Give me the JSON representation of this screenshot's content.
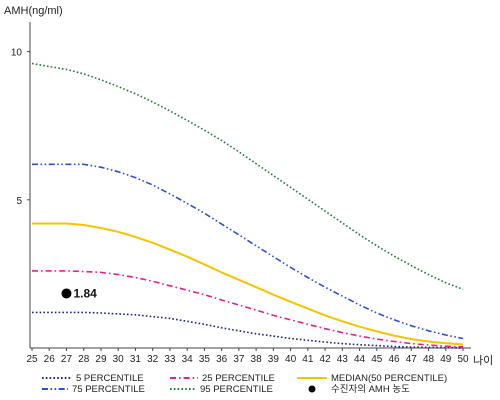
{
  "chart_data": {
    "type": "line",
    "ylabel": "AMH(ng/ml)",
    "xlabel": "나이",
    "x": [
      25,
      26,
      27,
      28,
      29,
      30,
      31,
      32,
      33,
      34,
      35,
      36,
      37,
      38,
      39,
      40,
      41,
      42,
      43,
      44,
      45,
      46,
      47,
      48,
      49,
      50
    ],
    "xlim": [
      25,
      50
    ],
    "ylim": [
      0,
      11
    ],
    "yticks": [
      5,
      10
    ],
    "grid": false,
    "legend_position": "bottom",
    "series": [
      {
        "name": "5 PERCENTILE",
        "color": "#1a237e",
        "style": "dotted",
        "values": [
          1.2,
          1.2,
          1.2,
          1.2,
          1.18,
          1.15,
          1.12,
          1.06,
          1.0,
          0.9,
          0.8,
          0.68,
          0.58,
          0.48,
          0.4,
          0.32,
          0.26,
          0.2,
          0.15,
          0.11,
          0.08,
          0.05,
          0.03,
          0.02,
          0.01,
          0.0
        ]
      },
      {
        "name": "25 PERCENTILE",
        "color": "#e91e8c",
        "style": "dash-dot",
        "values": [
          2.6,
          2.6,
          2.6,
          2.58,
          2.55,
          2.48,
          2.38,
          2.25,
          2.1,
          1.95,
          1.8,
          1.62,
          1.45,
          1.28,
          1.1,
          0.95,
          0.8,
          0.65,
          0.52,
          0.4,
          0.3,
          0.22,
          0.15,
          0.1,
          0.06,
          0.04
        ]
      },
      {
        "name": "MEDIAN(50 PERCENTILE)",
        "color": "#f5c400",
        "style": "solid",
        "values": [
          4.2,
          4.2,
          4.2,
          4.15,
          4.05,
          3.92,
          3.75,
          3.55,
          3.32,
          3.08,
          2.82,
          2.55,
          2.3,
          2.05,
          1.8,
          1.56,
          1.33,
          1.1,
          0.9,
          0.72,
          0.56,
          0.42,
          0.3,
          0.22,
          0.16,
          0.12
        ]
      },
      {
        "name": "75 PERCENTILE",
        "color": "#2f4fcf",
        "style": "dash-dot-dot",
        "values": [
          6.2,
          6.2,
          6.2,
          6.2,
          6.1,
          5.95,
          5.75,
          5.5,
          5.2,
          4.88,
          4.55,
          4.18,
          3.82,
          3.45,
          3.08,
          2.72,
          2.38,
          2.05,
          1.75,
          1.45,
          1.18,
          0.95,
          0.75,
          0.58,
          0.44,
          0.32
        ]
      },
      {
        "name": "95 PERCENTILE",
        "color": "#1f7a3a",
        "style": "dotted",
        "values": [
          9.6,
          9.5,
          9.4,
          9.25,
          9.05,
          8.82,
          8.58,
          8.3,
          8.0,
          7.68,
          7.35,
          7.0,
          6.62,
          6.22,
          5.82,
          5.42,
          5.02,
          4.62,
          4.22,
          3.82,
          3.45,
          3.1,
          2.78,
          2.48,
          2.2,
          1.98
        ]
      }
    ],
    "marker": {
      "name": "수진자의 AMH 농도",
      "x": 27,
      "y": 1.84,
      "label": "1.84",
      "color": "#000000"
    }
  }
}
